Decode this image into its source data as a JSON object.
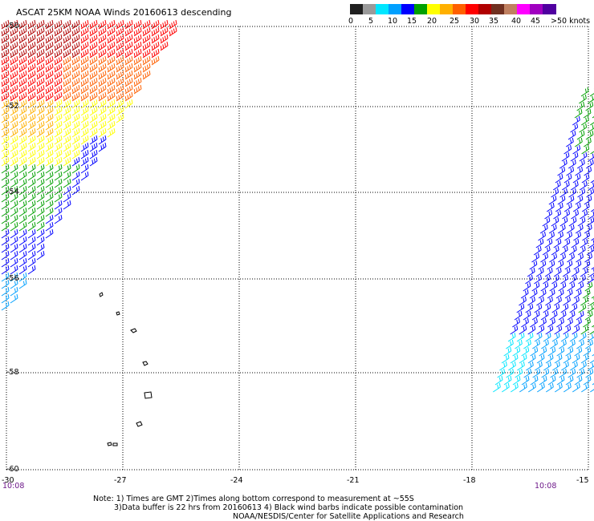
{
  "title": "ASCAT 25KM NOAA Winds 20160613 descending",
  "color_scale": {
    "labels": [
      "0",
      "5",
      "10",
      "15",
      "20",
      "25",
      "30",
      "35",
      "40",
      "45",
      ">50 knots"
    ],
    "colors": [
      "#202020",
      "#9a9a9a",
      "#00e6ff",
      "#00a0ff",
      "#0000ff",
      "#00a000",
      "#ffff00",
      "#ffb000",
      "#ff6000",
      "#ff0000",
      "#b00000",
      "#703020",
      "#c08060",
      "#ff00ff",
      "#a000c0",
      "#5000a0"
    ]
  },
  "axes": {
    "x_labels": [
      "-30",
      "-27",
      "-24",
      "-21",
      "-18",
      "-15"
    ],
    "y_labels": [
      "-50",
      "-52",
      "-54",
      "-56",
      "-58",
      "-60"
    ]
  },
  "time_labels": {
    "left": "10:08",
    "right": "10:08"
  },
  "notes": [
    "Note: 1) Times are GMT 2)Times along bottom correspond to measurement at ~55S",
    "3)Data buffer is 22 hrs from 20160613 4) Black wind barbs indicate possible contamination",
    "NOAA/NESDIS/Center for Satellite Applications and Research"
  ]
}
